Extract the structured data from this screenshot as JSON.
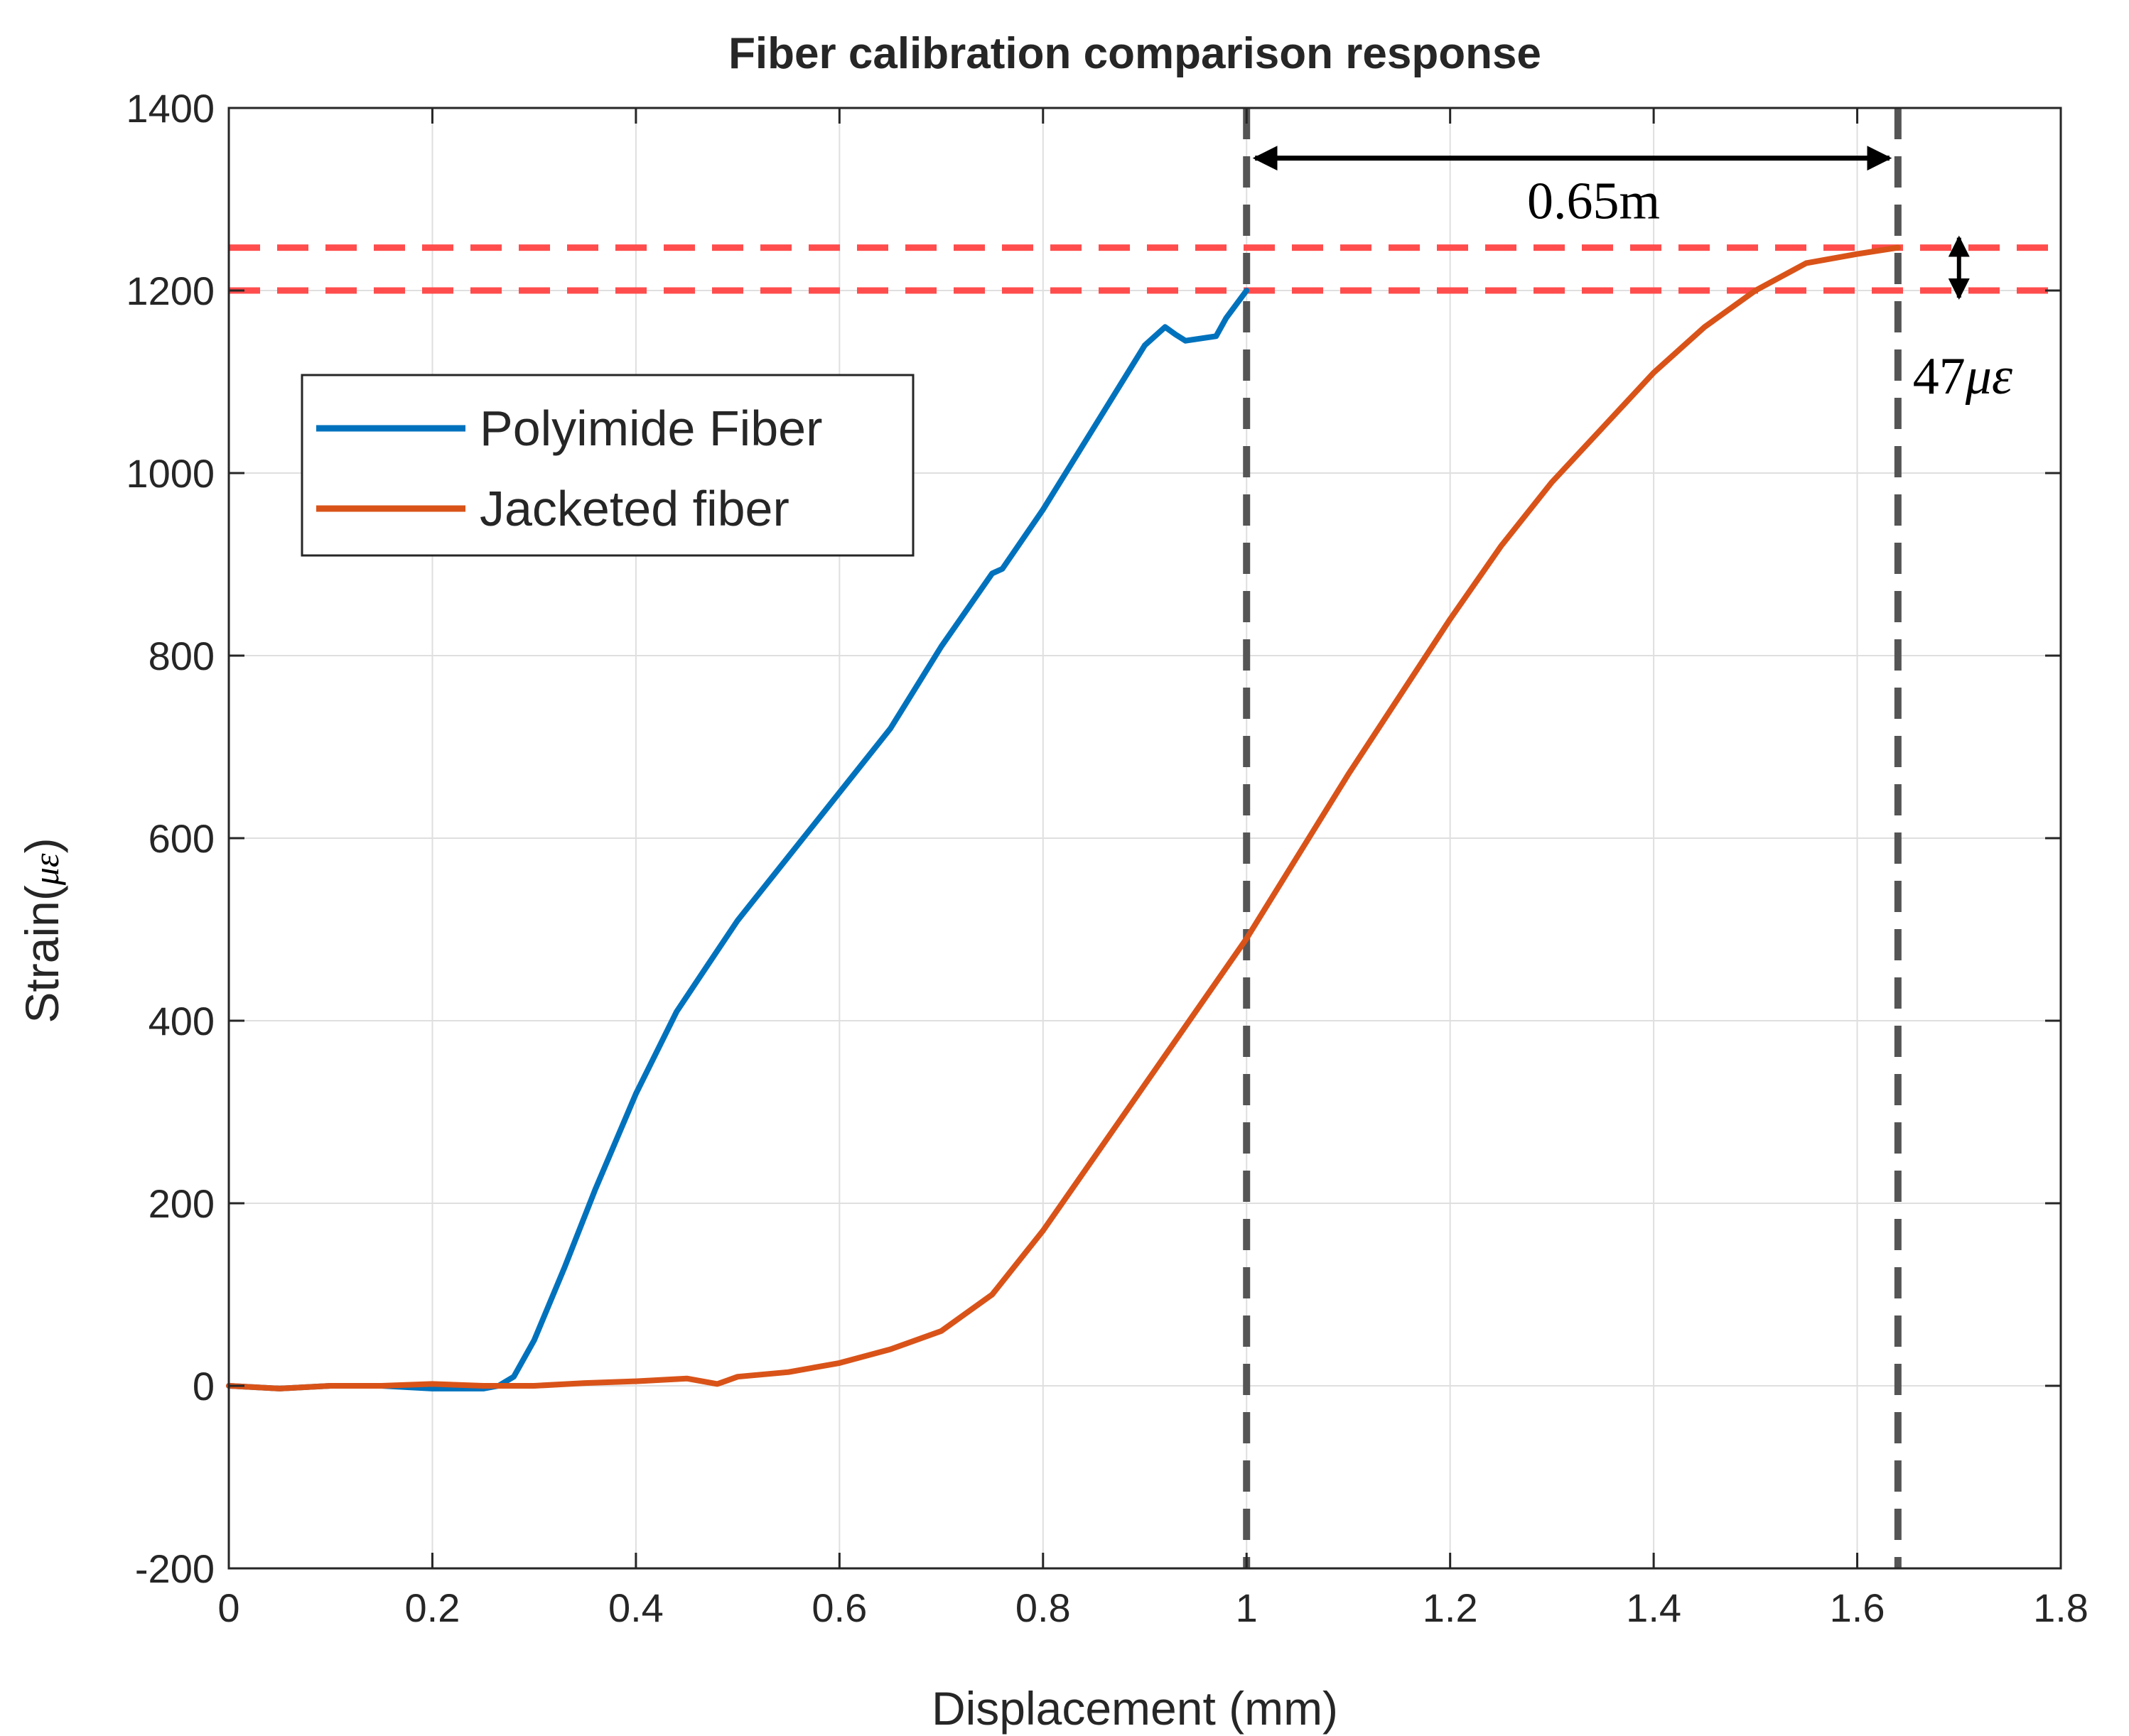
{
  "colors": {
    "polyimide": "#0072BD",
    "jacketed": "#D95319",
    "grid": "#DFDFDF",
    "axis": "#262626",
    "marker_vertical": "#555555",
    "marker_horizontal": "#FF4D4D",
    "annotation": "#000000"
  },
  "chart_data": {
    "type": "line",
    "title": "Fiber calibration comparison response",
    "xlabel": "Displacement (mm)",
    "ylabel_prefix": "Strain(",
    "ylabel_math": "με",
    "ylabel_suffix": ")",
    "xlim": [
      0,
      1.8
    ],
    "ylim": [
      -200,
      1400
    ],
    "xticks": [
      0,
      0.2,
      0.4,
      0.6,
      0.8,
      1,
      1.2,
      1.4,
      1.6,
      1.8
    ],
    "xtick_labels": [
      "0",
      "0.2",
      "0.4",
      "0.6",
      "0.8",
      "1",
      "1.2",
      "1.4",
      "1.6",
      "1.8"
    ],
    "yticks": [
      -200,
      0,
      200,
      400,
      600,
      800,
      1000,
      1200,
      1400
    ],
    "ytick_labels": [
      "-200",
      "0",
      "200",
      "400",
      "600",
      "800",
      "1000",
      "1200",
      "1400"
    ],
    "grid": true,
    "legend": {
      "location": "upper-left",
      "entries": [
        "Polyimide Fiber",
        "Jacketed fiber"
      ]
    },
    "series": [
      {
        "name": "Polyimide Fiber",
        "color": "#0072BD",
        "x": [
          0,
          0.05,
          0.1,
          0.15,
          0.2,
          0.25,
          0.265,
          0.28,
          0.3,
          0.33,
          0.36,
          0.4,
          0.44,
          0.47,
          0.5,
          0.55,
          0.6,
          0.65,
          0.7,
          0.75,
          0.76,
          0.8,
          0.85,
          0.9,
          0.92,
          0.93,
          0.94,
          0.97,
          0.98,
          1.0
        ],
        "y": [
          0,
          -3,
          0,
          0,
          -3,
          -3,
          0,
          10,
          50,
          130,
          215,
          320,
          410,
          460,
          510,
          580,
          650,
          720,
          810,
          890,
          895,
          960,
          1050,
          1140,
          1160,
          1152,
          1145,
          1150,
          1170,
          1200
        ]
      },
      {
        "name": "Jacketed fiber",
        "color": "#D95319",
        "x": [
          0,
          0.05,
          0.1,
          0.15,
          0.2,
          0.25,
          0.3,
          0.35,
          0.4,
          0.45,
          0.48,
          0.5,
          0.55,
          0.6,
          0.65,
          0.7,
          0.75,
          0.8,
          0.85,
          0.9,
          0.95,
          1.0,
          1.05,
          1.1,
          1.15,
          1.2,
          1.25,
          1.3,
          1.35,
          1.4,
          1.45,
          1.5,
          1.55,
          1.6,
          1.64
        ],
        "y": [
          0,
          -3,
          0,
          0,
          2,
          0,
          0,
          3,
          5,
          8,
          2,
          10,
          15,
          25,
          40,
          60,
          100,
          170,
          250,
          330,
          410,
          490,
          580,
          670,
          755,
          840,
          920,
          990,
          1050,
          1110,
          1160,
          1200,
          1230,
          1240,
          1247
        ]
      }
    ],
    "annotations": {
      "vertical_markers_x": [
        1.0,
        1.64
      ],
      "horizontal_markers_y": [
        1200,
        1247
      ],
      "horizontal_span": {
        "x_from": 1.0,
        "x_to": 1.64,
        "at_y": 1345,
        "label": "0.65m"
      },
      "vertical_span": {
        "x": 1.7,
        "y_from": 1200,
        "y_to": 1247,
        "label_prefix": "47",
        "label_math": "με"
      }
    }
  }
}
